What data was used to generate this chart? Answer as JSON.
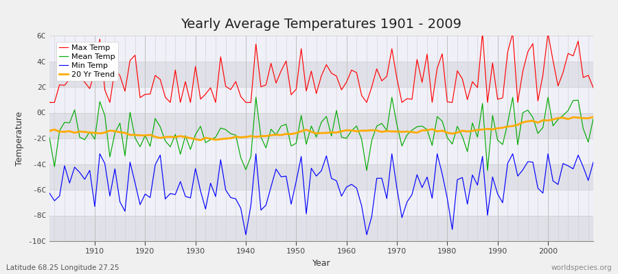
{
  "title": "Yearly Average Temperatures 1901 - 2009",
  "xlabel": "Year",
  "ylabel": "Temperature",
  "footnote_left": "Latitude 68.25 Longitude 27.25",
  "footnote_right": "worldspecies.org",
  "ylim": [
    -10,
    6
  ],
  "yticks": [
    -10,
    -8,
    -6,
    -4,
    -2,
    0,
    2,
    4,
    6
  ],
  "ytick_labels": [
    "-10C",
    "-8C",
    "-6C",
    "-4C",
    "-2C",
    "0C",
    "2C",
    "4C",
    "6C"
  ],
  "year_start": 1901,
  "year_end": 2009,
  "legend_labels": [
    "Max Temp",
    "Mean Temp",
    "Min Temp",
    "20 Yr Trend"
  ],
  "colors": {
    "max": "#ff0000",
    "mean": "#00aa00",
    "min": "#0000ff",
    "trend": "#ffaa00"
  },
  "fig_bg_color": "#f0f0f0",
  "plot_bg_color": "#f8f8f8",
  "band_color_dark": "#e0e0e8",
  "band_color_light": "#f0f0f8",
  "grid_color": "#cccccc",
  "title_fontsize": 14,
  "label_fontsize": 9,
  "tick_fontsize": 8,
  "footnote_fontsize": 7.5
}
